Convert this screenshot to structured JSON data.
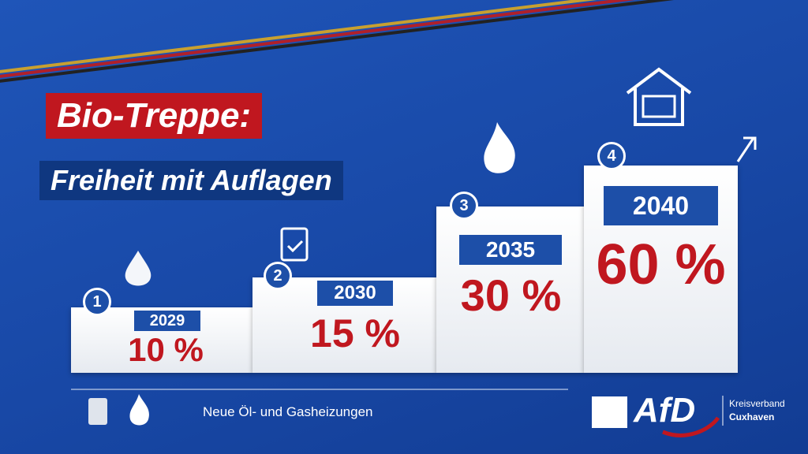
{
  "title_line1": "Bio-Treppe:",
  "title_line2": "Freiheit mit Auflagen",
  "steps": [
    {
      "number": "1",
      "year": "2029",
      "share": "10 %"
    },
    {
      "number": "2",
      "year": "2030",
      "share": "15 %"
    },
    {
      "number": "3",
      "year": "2035",
      "share": "30 %"
    },
    {
      "number": "4",
      "year": "2040",
      "share": "60 %"
    }
  ],
  "footer": {
    "caption": "Neue Öl- und Gasheizungen",
    "logo": "AfD",
    "org_line1": "Kreisverband",
    "org_line2": "Cuxhaven"
  }
}
